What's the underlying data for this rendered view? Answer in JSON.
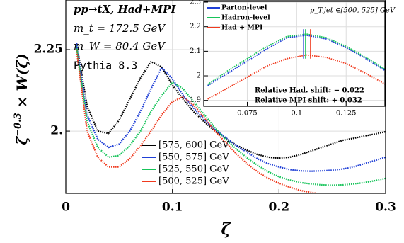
{
  "chart_data": [
    {
      "type": "line",
      "xlabel": "ζ",
      "ylabel": {
        "base": "ζ",
        "exp": "−0.3",
        "rest": " × W(ζ)"
      },
      "x": [
        0.01,
        0.02,
        0.03,
        0.04,
        0.05,
        0.06,
        0.07,
        0.08,
        0.09,
        0.1,
        0.11,
        0.12,
        0.13,
        0.14,
        0.15,
        0.16,
        0.17,
        0.18,
        0.19,
        0.2,
        0.21,
        0.22,
        0.23,
        0.24,
        0.25,
        0.26,
        0.27,
        0.28,
        0.29,
        0.3
      ],
      "series": [
        {
          "name": "[575, 600] GeV",
          "color": "#000000",
          "values": [
            2.27,
            2.076,
            2.0,
            1.993,
            2.033,
            2.098,
            2.163,
            2.213,
            2.196,
            2.141,
            2.098,
            2.059,
            2.028,
            2.0,
            1.978,
            1.957,
            1.941,
            1.928,
            1.92,
            1.917,
            1.92,
            1.928,
            1.939,
            1.95,
            1.961,
            1.972,
            1.978,
            1.985,
            1.991,
            1.998
          ]
        },
        {
          "name": "[550, 575] GeV",
          "color": "#1f3fd6",
          "values": [
            2.27,
            2.05,
            1.975,
            1.95,
            1.96,
            2.0,
            2.06,
            2.13,
            2.195,
            2.16,
            2.11,
            2.07,
            2.035,
            2.005,
            1.98,
            1.955,
            1.935,
            1.915,
            1.9,
            1.89,
            1.882,
            1.878,
            1.877,
            1.878,
            1.88,
            1.884,
            1.89,
            1.9,
            1.91,
            1.92
          ]
        },
        {
          "name": "[525, 550] GeV",
          "color": "#17c45a",
          "values": [
            2.26,
            2.03,
            1.95,
            1.92,
            1.925,
            1.955,
            2.0,
            2.06,
            2.11,
            2.15,
            2.13,
            2.09,
            2.05,
            2.01,
            1.975,
            1.945,
            1.918,
            1.895,
            1.875,
            1.86,
            1.85,
            1.842,
            1.838,
            1.835,
            1.834,
            1.835,
            1.838,
            1.842,
            1.848,
            1.855
          ]
        },
        {
          "name": "[500, 525] GeV",
          "color": "#f03a1e",
          "values": [
            2.25,
            2.0,
            1.92,
            1.89,
            1.89,
            1.915,
            1.955,
            2.0,
            2.05,
            2.09,
            2.105,
            2.08,
            2.04,
            2.0,
            1.965,
            1.93,
            1.9,
            1.875,
            1.855,
            1.84,
            1.828,
            1.818,
            1.812,
            1.806,
            1.8,
            1.795,
            1.79,
            1.786,
            1.783,
            1.78
          ]
        }
      ],
      "xlim": [
        0,
        0.3
      ],
      "ylim": [
        1.809,
        2.402
      ],
      "xticks": [
        0,
        0.1,
        0.2,
        0.3
      ],
      "yticks": [
        {
          "value": 2,
          "label": "2."
        },
        2.25
      ],
      "grid": true,
      "legend": "lower-center",
      "annotations": [
        "pp→tX, Had+MPI",
        "m_t = 172.5 GeV",
        "m_W = 80.4 GeV",
        "Pythia 8.3"
      ]
    },
    {
      "type": "line",
      "x": [
        0.055,
        0.065,
        0.075,
        0.085,
        0.095,
        0.105,
        0.115,
        0.125,
        0.135,
        0.145
      ],
      "series": [
        {
          "name": "Parton-level",
          "color": "#1f3fd6",
          "values": [
            1.96,
            2.01,
            2.06,
            2.11,
            2.155,
            2.165,
            2.15,
            2.115,
            2.07,
            2.02
          ]
        },
        {
          "name": "Hadron-level",
          "color": "#17c45a",
          "values": [
            1.965,
            2.02,
            2.07,
            2.12,
            2.16,
            2.17,
            2.155,
            2.12,
            2.075,
            2.025
          ]
        },
        {
          "name": "Had + MPI",
          "color": "#f03a1e",
          "values": [
            1.905,
            1.95,
            1.995,
            2.04,
            2.07,
            2.085,
            2.075,
            2.05,
            2.01,
            1.965
          ]
        }
      ],
      "markers": [
        {
          "x": 0.1035,
          "color": "#1f3fd6"
        },
        {
          "x": 0.1045,
          "color": "#17c45a"
        },
        {
          "x": 0.107,
          "color": "#f03a1e"
        }
      ],
      "xlim": [
        0.053,
        0.1446
      ],
      "ylim": [
        1.876,
        2.303
      ],
      "xticks": [
        0.075,
        0.1,
        0.125
      ],
      "yticks": [
        1.9,
        2,
        2.1,
        2.2,
        2.3
      ],
      "grid": true,
      "legend": "upper-left",
      "annotations": [
        "p_T,jet ∈[500, 525] GeV",
        "Relative Had. shift: − 0.022",
        "Relative MPI shift: + 0.032"
      ]
    }
  ]
}
